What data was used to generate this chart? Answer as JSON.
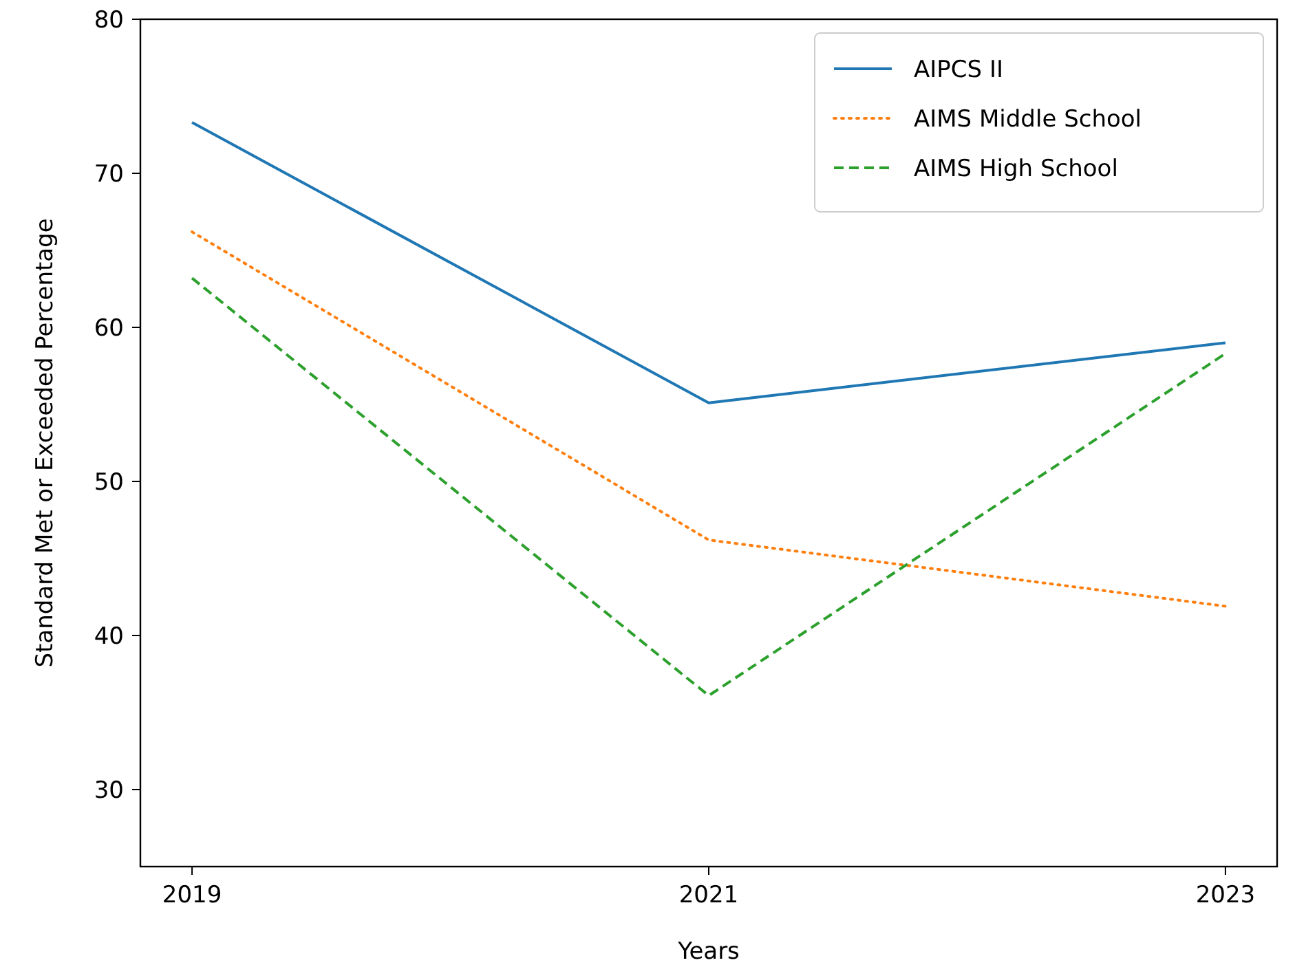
{
  "chart_data": {
    "type": "line",
    "xlabel": "Years",
    "ylabel": "Standard Met or Exceeded Percentage",
    "x": [
      2019,
      2021,
      2023
    ],
    "xlim": [
      2018.8,
      2023.2
    ],
    "xticks": [
      2019,
      2021,
      2023
    ],
    "ylim": [
      25,
      80
    ],
    "yticks": [
      30,
      40,
      50,
      60,
      70,
      80
    ],
    "grid": false,
    "legend": "top right",
    "marker": "none",
    "series": [
      {
        "name": "AIPCS II",
        "color": "#1f77b4",
        "line_style": "solid",
        "values": [
          73.3,
          55.1,
          59.0
        ]
      },
      {
        "name": "AIMS Middle School",
        "color": "#ff7f0e",
        "line_style": "dotted",
        "values": [
          66.2,
          46.2,
          41.9
        ]
      },
      {
        "name": "AIMS High School",
        "color": "#2ca02c",
        "line_style": "dashed",
        "values": [
          63.2,
          36.1,
          58.3
        ]
      }
    ]
  }
}
